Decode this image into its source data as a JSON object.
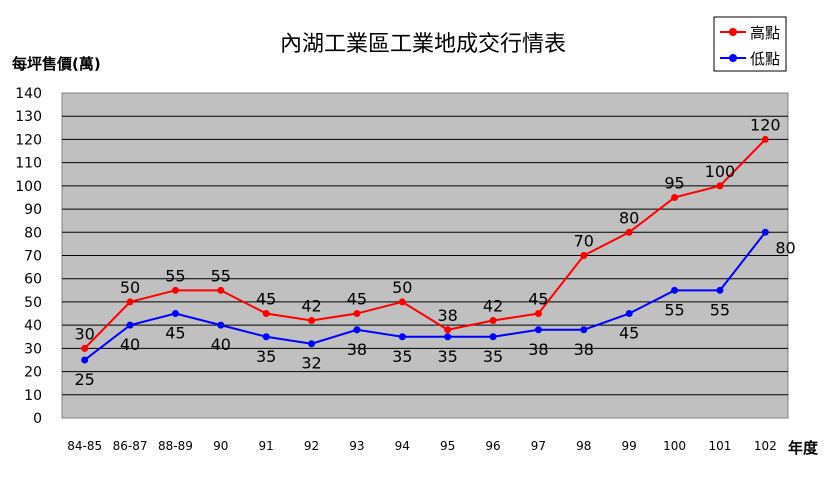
{
  "chart_data": {
    "type": "line",
    "title": "內湖工業區工業地成交行情表",
    "ylabel": "每坪售價(萬)",
    "xlabel": "年度",
    "categories": [
      "84-85",
      "86-87",
      "88-89",
      "90",
      "91",
      "92",
      "93",
      "94",
      "95",
      "96",
      "97",
      "98",
      "99",
      "100",
      "101",
      "102"
    ],
    "ylim": [
      0,
      140
    ],
    "yticks": [
      0,
      10,
      20,
      30,
      40,
      50,
      60,
      70,
      80,
      90,
      100,
      110,
      120,
      130,
      140
    ],
    "grid": true,
    "legend_position": "top-right",
    "series": [
      {
        "name": "高點",
        "color": "#ff0000",
        "values": [
          30,
          50,
          55,
          55,
          45,
          42,
          45,
          50,
          38,
          42,
          45,
          70,
          80,
          95,
          100,
          120
        ]
      },
      {
        "name": "低點",
        "color": "#0000ff",
        "values": [
          25,
          40,
          45,
          40,
          35,
          32,
          38,
          35,
          35,
          35,
          38,
          38,
          45,
          55,
          55,
          80
        ]
      }
    ],
    "plot_background": "#c0c0c0"
  }
}
